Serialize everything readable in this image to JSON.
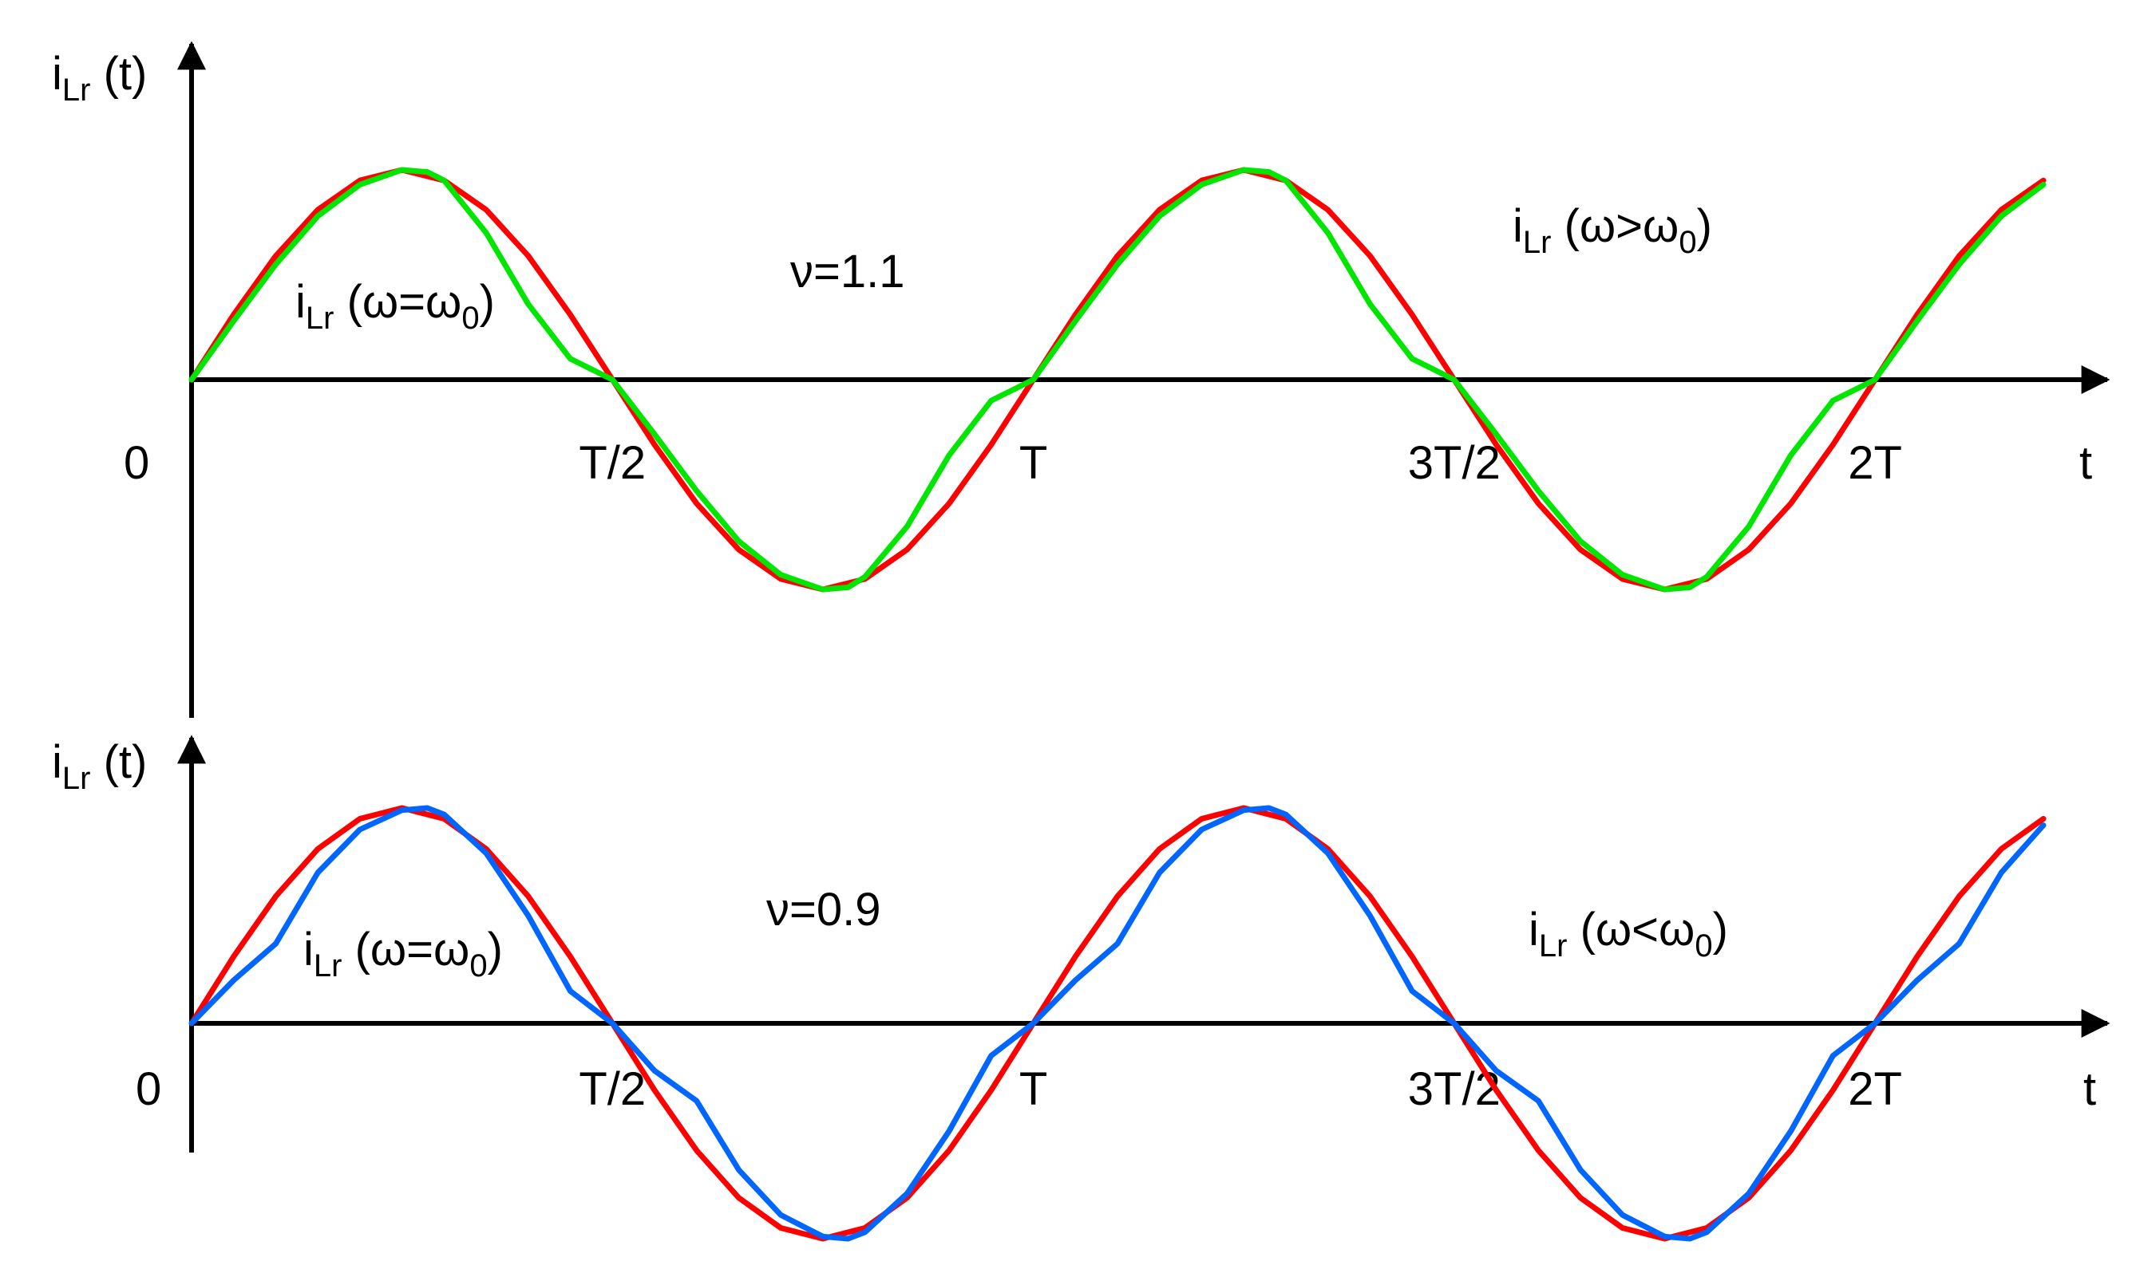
{
  "colors": {
    "axis": "#000000",
    "ideal": "#ff0000",
    "above": "#00e600",
    "below": "#0066ff",
    "nu_label": "#808080"
  },
  "chart_data": [
    {
      "type": "line",
      "panel": "top",
      "ylabel": {
        "main": "i",
        "sub": "Lr",
        "rest": " (t)"
      },
      "xlabel": "t",
      "origin_label": "0",
      "x_unit": "T",
      "xlim": [
        0,
        2.2
      ],
      "ylim": [
        -1,
        1
      ],
      "x_tick_labels": [
        {
          "x": 0.5,
          "label": "T/2"
        },
        {
          "x": 1.0,
          "label": "T"
        },
        {
          "x": 1.5,
          "label": "3T/2"
        },
        {
          "x": 2.0,
          "label": "2T"
        }
      ],
      "annotation": "ν=1.1",
      "series": [
        {
          "key": "ideal",
          "label": {
            "main": "i",
            "sub": "Lr",
            "open": " (ω=ω",
            "sub2": "0",
            "close": ")"
          },
          "x": [
            0,
            0.05,
            0.1,
            0.15,
            0.2,
            0.25,
            0.3,
            0.35,
            0.4,
            0.45,
            0.5,
            0.55,
            0.6,
            0.65,
            0.7,
            0.75,
            0.8,
            0.85,
            0.9,
            0.95,
            1.0,
            1.05,
            1.1,
            1.15,
            1.2,
            1.25,
            1.3,
            1.35,
            1.4,
            1.45,
            1.5,
            1.55,
            1.6,
            1.65,
            1.7,
            1.75,
            1.8,
            1.85,
            1.9,
            1.95,
            2.0,
            2.05,
            2.1,
            2.15,
            2.2
          ],
          "y": [
            0,
            0.31,
            0.59,
            0.81,
            0.95,
            1.0,
            0.95,
            0.81,
            0.59,
            0.31,
            0,
            -0.31,
            -0.59,
            -0.81,
            -0.95,
            -1.0,
            -0.95,
            -0.81,
            -0.59,
            -0.31,
            0,
            0.31,
            0.59,
            0.81,
            0.95,
            1.0,
            0.95,
            0.81,
            0.59,
            0.31,
            0,
            -0.31,
            -0.59,
            -0.81,
            -0.95,
            -1.0,
            -0.95,
            -0.81,
            -0.59,
            -0.31,
            0,
            0.31,
            0.59,
            0.81,
            0.95
          ]
        },
        {
          "key": "above",
          "label": {
            "main": "i",
            "sub": "Lr",
            "open": " (ω>ω",
            "sub2": "0",
            "close": ")"
          },
          "x": [
            0,
            0.05,
            0.1,
            0.15,
            0.2,
            0.25,
            0.28,
            0.3,
            0.35,
            0.4,
            0.45,
            0.5,
            0.55,
            0.6,
            0.65,
            0.7,
            0.75,
            0.78,
            0.8,
            0.85,
            0.9,
            0.95,
            1.0,
            1.05,
            1.1,
            1.15,
            1.2,
            1.25,
            1.28,
            1.3,
            1.35,
            1.4,
            1.45,
            1.5,
            1.55,
            1.6,
            1.65,
            1.7,
            1.75,
            1.78,
            1.8,
            1.85,
            1.9,
            1.95,
            2.0,
            2.05,
            2.1,
            2.15,
            2.2
          ],
          "y": [
            0,
            0.28,
            0.55,
            0.78,
            0.93,
            1.0,
            0.99,
            0.95,
            0.7,
            0.36,
            0.1,
            0,
            -0.26,
            -0.53,
            -0.77,
            -0.93,
            -1.0,
            -0.99,
            -0.94,
            -0.7,
            -0.36,
            -0.1,
            0,
            0.28,
            0.55,
            0.78,
            0.93,
            1.0,
            0.99,
            0.95,
            0.7,
            0.36,
            0.1,
            0,
            -0.26,
            -0.53,
            -0.77,
            -0.93,
            -1.0,
            -0.99,
            -0.94,
            -0.7,
            -0.36,
            -0.1,
            0,
            0.28,
            0.55,
            0.78,
            0.93
          ]
        }
      ]
    },
    {
      "type": "line",
      "panel": "bottom",
      "ylabel": {
        "main": "i",
        "sub": "Lr",
        "rest": " (t)"
      },
      "xlabel": "t",
      "origin_label": "0",
      "x_unit": "T",
      "xlim": [
        0,
        2.2
      ],
      "ylim": [
        -1,
        1
      ],
      "x_tick_labels": [
        {
          "x": 0.5,
          "label": "T/2"
        },
        {
          "x": 1.0,
          "label": "T"
        },
        {
          "x": 1.5,
          "label": "3T/2"
        },
        {
          "x": 2.0,
          "label": "2T"
        }
      ],
      "annotation": "ν=0.9",
      "series": [
        {
          "key": "ideal",
          "label": {
            "main": "i",
            "sub": "Lr",
            "open": " (ω=ω",
            "sub2": "0",
            "close": ")"
          },
          "x": [
            0,
            0.05,
            0.1,
            0.15,
            0.2,
            0.25,
            0.3,
            0.35,
            0.4,
            0.45,
            0.5,
            0.55,
            0.6,
            0.65,
            0.7,
            0.75,
            0.8,
            0.85,
            0.9,
            0.95,
            1.0,
            1.05,
            1.1,
            1.15,
            1.2,
            1.25,
            1.3,
            1.35,
            1.4,
            1.45,
            1.5,
            1.55,
            1.6,
            1.65,
            1.7,
            1.75,
            1.8,
            1.85,
            1.9,
            1.95,
            2.0,
            2.05,
            2.1,
            2.15,
            2.2
          ],
          "y": [
            0,
            0.31,
            0.59,
            0.81,
            0.95,
            1.0,
            0.95,
            0.81,
            0.59,
            0.31,
            0,
            -0.31,
            -0.59,
            -0.81,
            -0.95,
            -1.0,
            -0.95,
            -0.81,
            -0.59,
            -0.31,
            0,
            0.31,
            0.59,
            0.81,
            0.95,
            1.0,
            0.95,
            0.81,
            0.59,
            0.31,
            0,
            -0.31,
            -0.59,
            -0.81,
            -0.95,
            -1.0,
            -0.95,
            -0.81,
            -0.59,
            -0.31,
            0,
            0.31,
            0.59,
            0.81,
            0.95
          ]
        },
        {
          "key": "below",
          "label": {
            "main": "i",
            "sub": "Lr",
            "open": " (ω<ω",
            "sub2": "0",
            "close": ")"
          },
          "x": [
            0,
            0.05,
            0.1,
            0.15,
            0.2,
            0.25,
            0.28,
            0.3,
            0.35,
            0.4,
            0.45,
            0.5,
            0.55,
            0.6,
            0.65,
            0.7,
            0.75,
            0.78,
            0.8,
            0.85,
            0.9,
            0.95,
            1.0,
            1.05,
            1.1,
            1.15,
            1.2,
            1.25,
            1.28,
            1.3,
            1.35,
            1.4,
            1.45,
            1.5,
            1.55,
            1.6,
            1.65,
            1.7,
            1.75,
            1.78,
            1.8,
            1.85,
            1.9,
            1.95,
            2.0,
            2.05,
            2.1,
            2.15,
            2.2
          ],
          "y": [
            0,
            0.2,
            0.37,
            0.7,
            0.9,
            0.99,
            1.0,
            0.97,
            0.79,
            0.5,
            0.15,
            0,
            -0.22,
            -0.36,
            -0.68,
            -0.89,
            -0.99,
            -1.0,
            -0.97,
            -0.79,
            -0.5,
            -0.15,
            0,
            0.2,
            0.37,
            0.7,
            0.9,
            0.99,
            1.0,
            0.97,
            0.79,
            0.5,
            0.15,
            0,
            -0.22,
            -0.36,
            -0.68,
            -0.89,
            -0.99,
            -1.0,
            -0.97,
            -0.79,
            -0.5,
            -0.15,
            0,
            0.2,
            0.37,
            0.7,
            0.92
          ]
        }
      ]
    }
  ]
}
